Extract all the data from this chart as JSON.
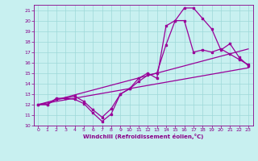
{
  "xlabel": "Windchill (Refroidissement éolien,°C)",
  "bg_color": "#c8f0f0",
  "line_color": "#990099",
  "xlim": [
    -0.5,
    23.5
  ],
  "ylim": [
    10,
    21.5
  ],
  "xticks": [
    0,
    1,
    2,
    3,
    4,
    5,
    6,
    7,
    8,
    9,
    10,
    11,
    12,
    13,
    14,
    15,
    16,
    17,
    18,
    19,
    20,
    21,
    22,
    23
  ],
  "yticks": [
    10,
    11,
    12,
    13,
    14,
    15,
    16,
    17,
    18,
    19,
    20,
    21
  ],
  "grid_color": "#9dd8d8",
  "curve1_x": [
    0,
    1,
    2,
    3,
    4,
    5,
    6,
    7,
    8,
    9,
    10,
    11,
    12,
    13,
    14,
    15,
    16,
    17,
    18,
    19,
    20,
    21,
    22,
    23
  ],
  "curve1_y": [
    12.0,
    12.0,
    12.5,
    12.6,
    12.5,
    12.1,
    11.2,
    10.4,
    11.1,
    13.0,
    13.5,
    14.5,
    15.0,
    14.5,
    19.5,
    20.0,
    21.2,
    21.2,
    20.2,
    19.2,
    17.2,
    17.8,
    16.5,
    15.7
  ],
  "curve2_x": [
    0,
    1,
    2,
    3,
    4,
    5,
    6,
    7,
    8,
    9,
    10,
    11,
    12,
    13,
    14,
    15,
    16,
    17,
    18,
    19,
    20,
    21,
    22,
    23
  ],
  "curve2_y": [
    12.0,
    12.0,
    12.6,
    12.6,
    12.8,
    12.3,
    11.5,
    10.8,
    11.6,
    13.0,
    13.5,
    14.2,
    14.8,
    15.0,
    17.7,
    20.0,
    20.0,
    17.0,
    17.2,
    17.0,
    17.3,
    16.8,
    16.3,
    15.8
  ],
  "line1_x": [
    0,
    23
  ],
  "line1_y": [
    12.0,
    15.5
  ],
  "line2_x": [
    0,
    23
  ],
  "line2_y": [
    12.0,
    17.3
  ]
}
